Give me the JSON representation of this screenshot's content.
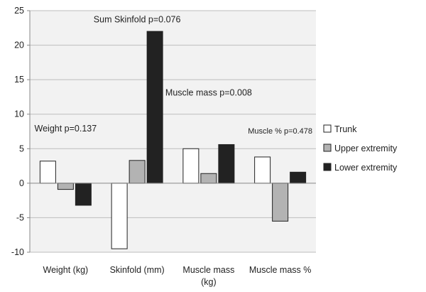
{
  "chart_data": {
    "type": "bar",
    "title": "",
    "xlabel": "",
    "ylabel": "",
    "ylim": [
      -10,
      25
    ],
    "yticks": [
      25,
      20,
      15,
      10,
      5,
      0,
      -5,
      -10
    ],
    "grid": true,
    "legend_position": "right",
    "categories": [
      "Weight (kg)",
      "Skinfold (mm)",
      "Muscle mass (kg)",
      "Muscle mass %"
    ],
    "category_lines": [
      [
        "Weight (kg)"
      ],
      [
        "Skinfold (mm)"
      ],
      [
        "Muscle mass",
        "(kg)"
      ],
      [
        "Muscle mass %"
      ]
    ],
    "series": [
      {
        "name": "Trunk",
        "color": "#ffffff",
        "values": [
          3.2,
          -9.5,
          5.0,
          3.8
        ]
      },
      {
        "name": "Upper extremity",
        "color": "#b3b3b3",
        "values": [
          -0.9,
          3.3,
          1.4,
          -5.5
        ]
      },
      {
        "name": "Lower extremity",
        "color": "#222222",
        "values": [
          -3.2,
          22.0,
          5.6,
          1.6
        ]
      }
    ],
    "annotations": [
      {
        "text": "Weight p=0.137",
        "category": 0,
        "y": 7.5,
        "size": "normal"
      },
      {
        "text": "Sum Skinfold p=0.076",
        "category": 1,
        "y": 23.3,
        "size": "normal"
      },
      {
        "text": "Muscle mass p=0.008",
        "category": 2,
        "y": 12.7,
        "size": "normal"
      },
      {
        "text": "Muscle % p=0.478",
        "category": 3,
        "y": 7.2,
        "size": "small"
      }
    ]
  }
}
